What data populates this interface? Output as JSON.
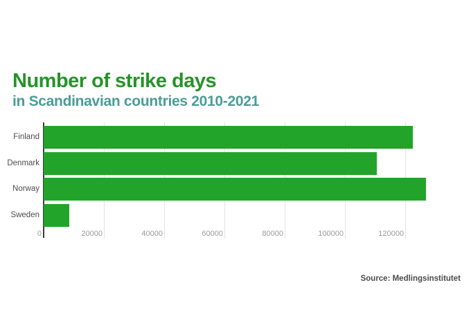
{
  "title": "Number of strike days",
  "subtitle": "in Scandinavian countries 2010-2021",
  "source": "Source: Medlingsinstitutet",
  "colors": {
    "background": "#FFFFFF",
    "title": "#269329",
    "subtitle": "#4A9C97",
    "bar": "#22A42B",
    "gridline": "#E3E3E3",
    "axis_line": "#3B3B3B",
    "tick_label": "#9B9B9B",
    "category_label": "#4D4D4D",
    "source_text": "#4B4B4B"
  },
  "chart_data": {
    "type": "bar",
    "orientation": "horizontal",
    "title": "Number of strike days",
    "subtitle": "in Scandinavian countries 2010-2021",
    "source": "Source: Medlingsinstitutet",
    "categories": [
      "Finland",
      "Denmark",
      "Norway",
      "Sweden"
    ],
    "values": [
      122500,
      110500,
      127000,
      8500
    ],
    "x_ticks": [
      0,
      20000,
      40000,
      60000,
      80000,
      100000,
      120000
    ],
    "x_tick_labels": [
      "0",
      "20000",
      "40000",
      "60000",
      "80000",
      "100000",
      "120000"
    ],
    "xlim": [
      0,
      139000
    ],
    "grid": "vertical",
    "legend": "none"
  }
}
